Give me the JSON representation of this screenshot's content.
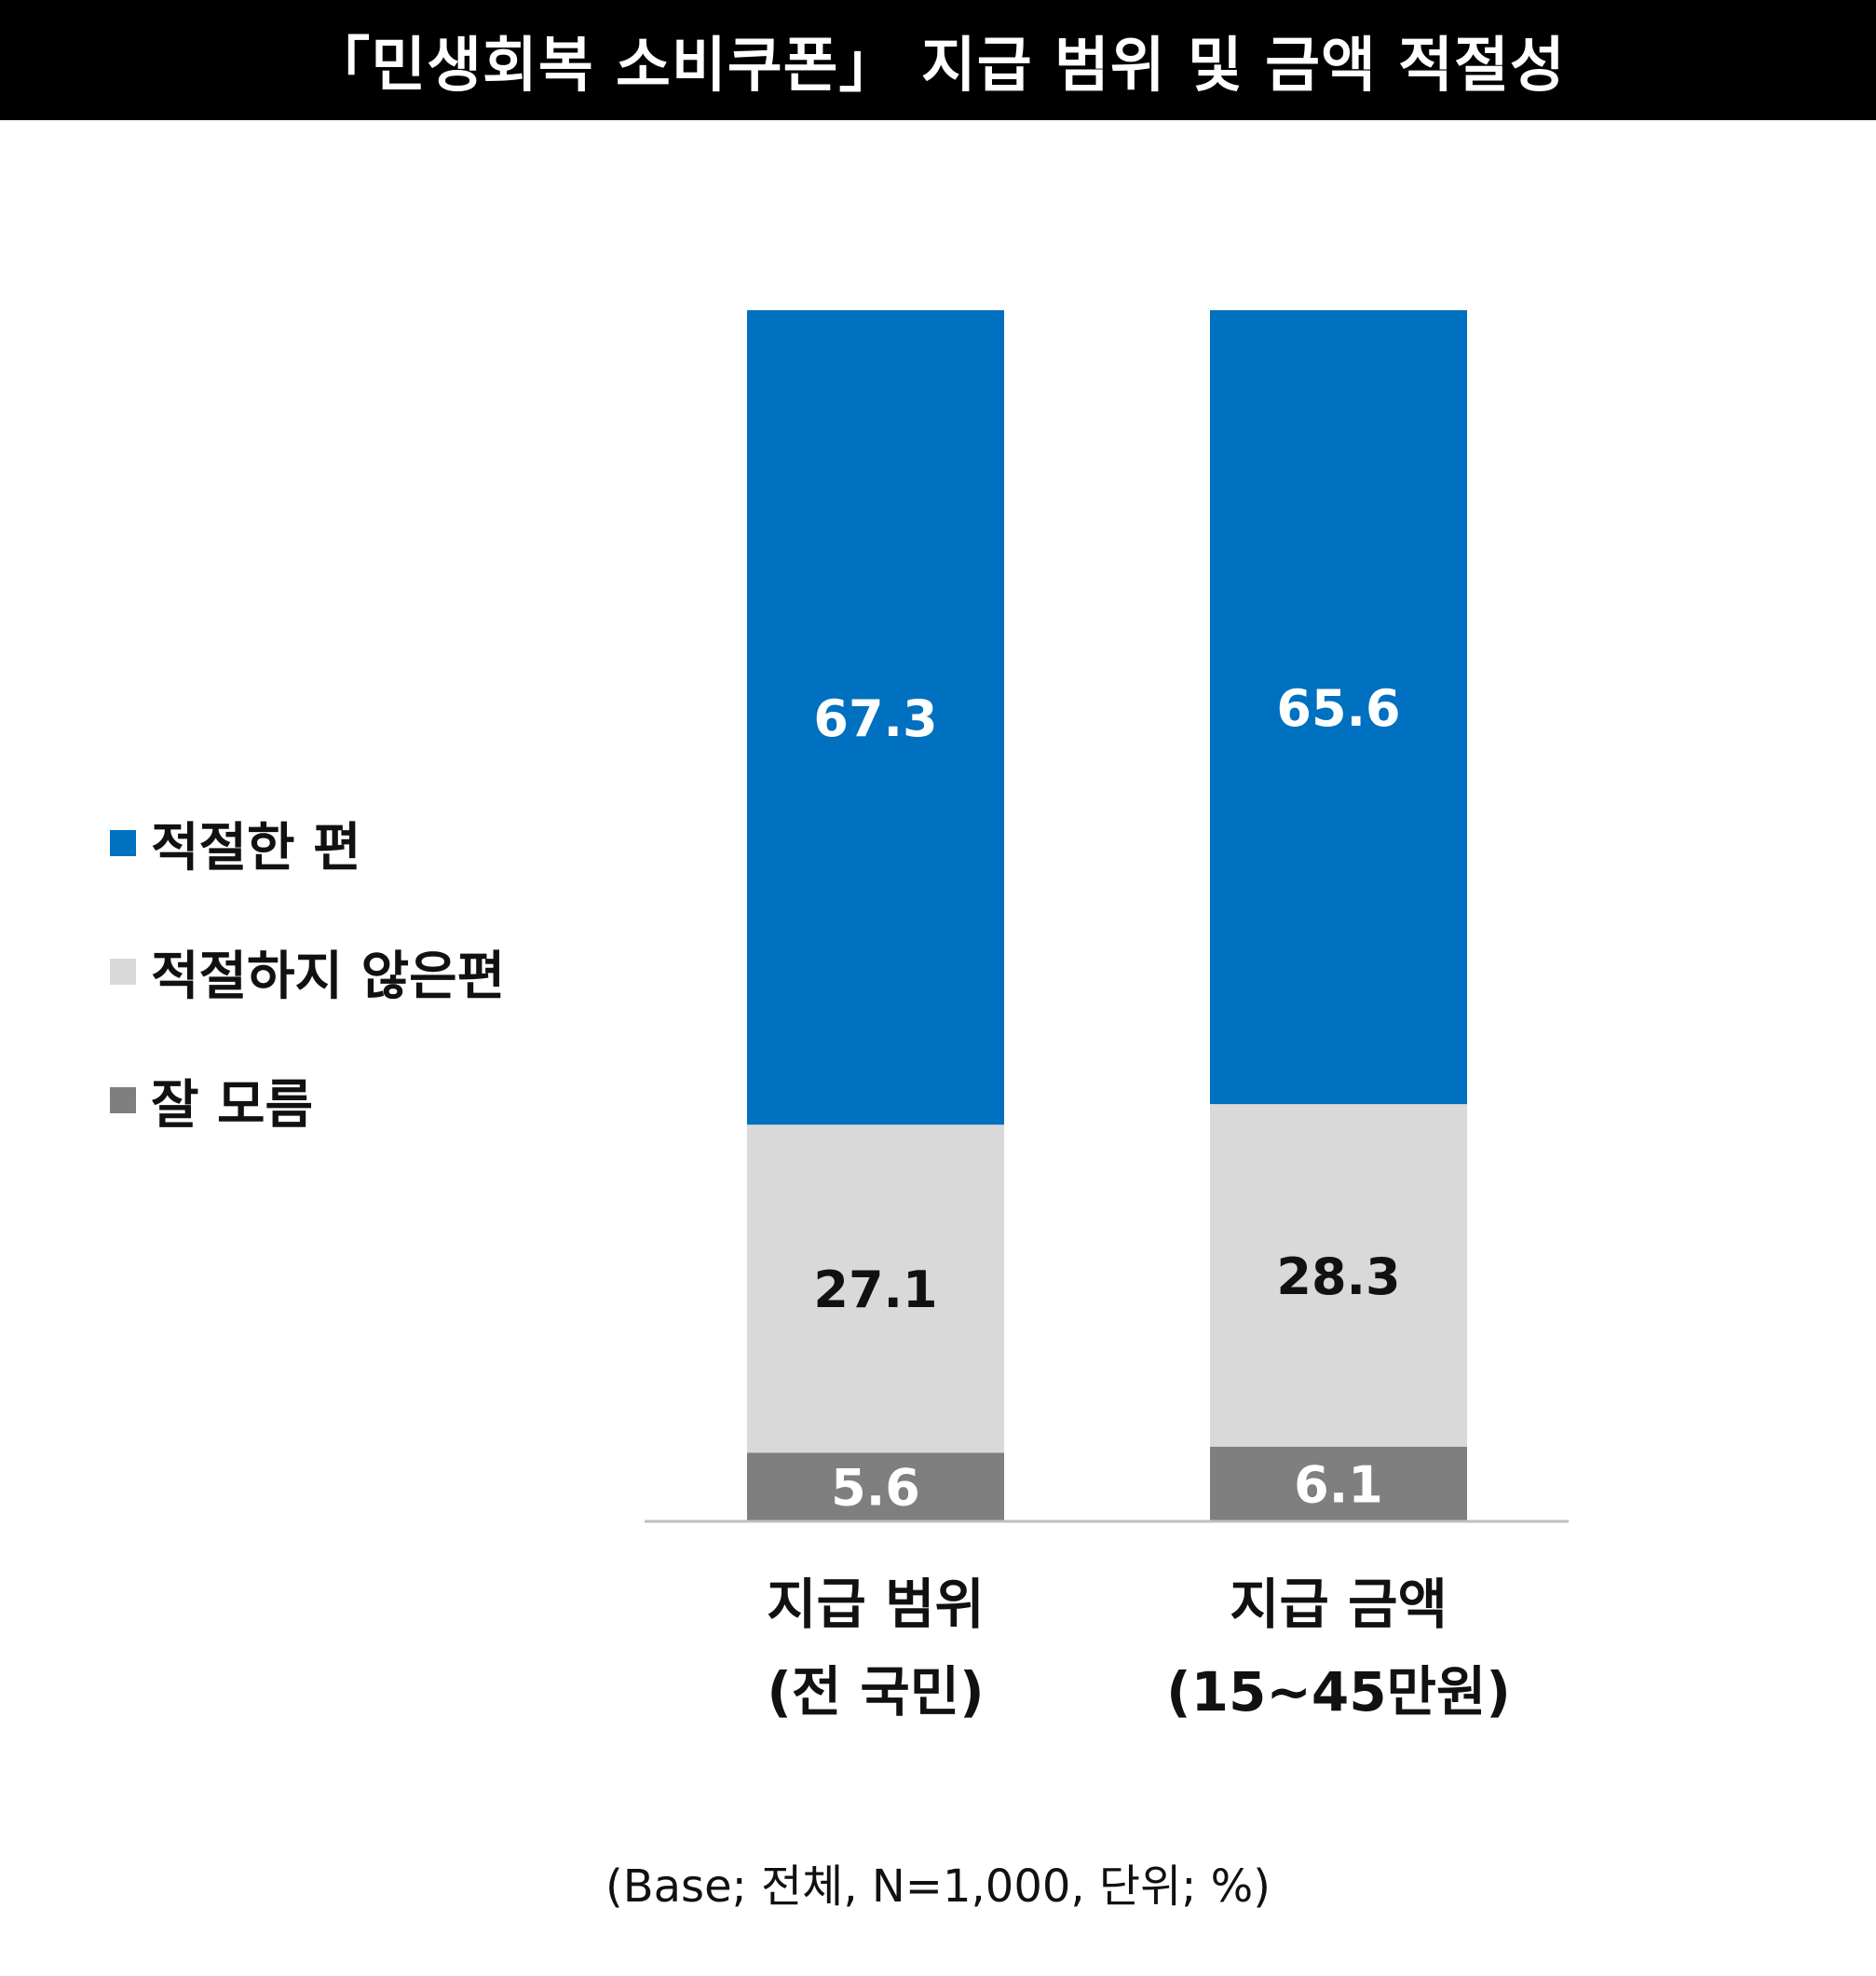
{
  "title": "「민생회복 소비쿠폰」 지급 범위 및 금액 적절성",
  "footnote": "(Base; 전체, N=1,000, 단위; %)",
  "colors": {
    "title_bg": "#000000",
    "title_text": "#ffffff",
    "appropriate": "#0070C0",
    "not_appropriate": "#D9D9D9",
    "dont_know": "#7F7F7F",
    "label_light": "#ffffff",
    "label_dark": "#111111",
    "baseline": "#BFBFBF"
  },
  "legend": [
    {
      "label": "적절한 편",
      "color": "#0070C0"
    },
    {
      "label": "적절하지 않은편",
      "color": "#D9D9D9"
    },
    {
      "label": "잘 모름",
      "color": "#7F7F7F"
    }
  ],
  "chart_data": {
    "type": "bar",
    "stacked": true,
    "categories": [
      [
        "지급 범위",
        "(전 국민)"
      ],
      [
        "지급 금액",
        "(15~45만원)"
      ]
    ],
    "series": [
      {
        "name": "잘 모름",
        "values": [
          5.6,
          6.1
        ],
        "color": "#7F7F7F",
        "label_color": "#ffffff"
      },
      {
        "name": "적절하지 않은편",
        "values": [
          27.1,
          28.3
        ],
        "color": "#D9D9D9",
        "label_color": "#111111"
      },
      {
        "name": "적절한 편",
        "values": [
          67.3,
          65.6
        ],
        "color": "#0070C0",
        "label_color": "#ffffff"
      }
    ],
    "ylim": [
      0,
      100
    ],
    "grid": false,
    "legend_position": "left"
  }
}
